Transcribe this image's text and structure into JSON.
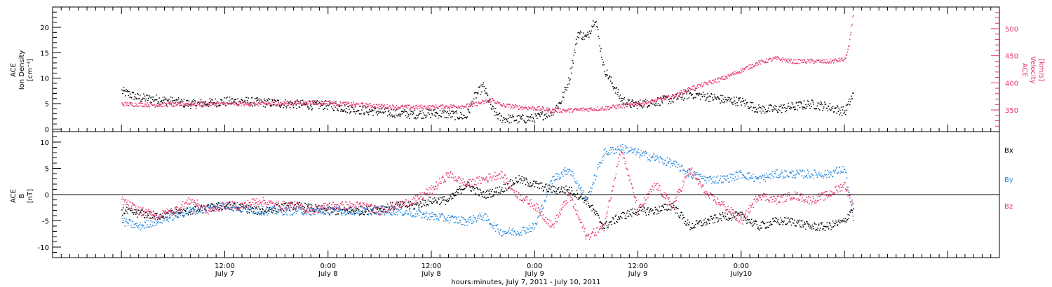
{
  "chart_data": [
    {
      "type": "scatter",
      "panel": "top",
      "ylabel_left": [
        "ACE",
        "Ion Density",
        "[cm⁻³]"
      ],
      "ylabel_right": [
        "ACE",
        "Velocity",
        "[km/s]"
      ],
      "ylim_left": [
        -0.5,
        24
      ],
      "ylim_right": [
        310,
        540
      ],
      "yticks_left": [
        "0",
        "5",
        "10",
        "15",
        "20"
      ],
      "yticks_right": [
        "350",
        "400",
        "450",
        "500"
      ],
      "colors": {
        "density": "#000000",
        "velocity": "#e6306b"
      },
      "series": [
        {
          "key": "density",
          "axis": "left",
          "color": "#000000",
          "x": [
            0,
            2,
            4,
            6,
            8,
            10,
            12,
            14,
            16,
            18,
            20,
            22,
            24,
            26,
            28,
            30,
            32,
            34,
            36,
            38,
            40,
            41,
            42,
            43,
            44,
            46,
            48,
            50,
            51,
            52,
            53,
            54,
            55,
            56,
            57,
            58,
            59,
            60,
            62,
            64,
            66,
            68,
            70,
            72,
            74,
            76,
            78,
            80,
            82,
            84,
            85
          ],
          "y": [
            7.5,
            6.2,
            6.0,
            5.5,
            5.0,
            5.2,
            5.5,
            5.6,
            5.3,
            5.2,
            5.0,
            4.8,
            4.8,
            4.2,
            3.8,
            3.5,
            3.2,
            3.0,
            3.2,
            3.0,
            2.5,
            6.5,
            8.5,
            4.0,
            2.2,
            2.0,
            2.2,
            3.5,
            5.5,
            10,
            19,
            18,
            22,
            12,
            9,
            6,
            5,
            5.0,
            5.5,
            6.0,
            7.0,
            6.5,
            5.8,
            5.5,
            4.0,
            4.0,
            4.5,
            5.0,
            4.5,
            3.5,
            7.0
          ]
        },
        {
          "key": "velocity",
          "axis": "right",
          "color": "#e6306b",
          "x": [
            0,
            4,
            8,
            12,
            16,
            20,
            24,
            28,
            32,
            36,
            40,
            42,
            43,
            44,
            46,
            48,
            50,
            52,
            54,
            56,
            58,
            60,
            62,
            64,
            66,
            68,
            70,
            72,
            74,
            76,
            78,
            80,
            82,
            84,
            84.5,
            85
          ],
          "y": [
            362,
            360,
            362,
            362,
            362,
            364,
            364,
            360,
            356,
            356,
            358,
            365,
            370,
            360,
            356,
            354,
            350,
            350,
            352,
            354,
            358,
            362,
            368,
            376,
            390,
            400,
            410,
            424,
            438,
            446,
            440,
            441,
            440,
            444,
            470,
            530
          ]
        }
      ]
    },
    {
      "type": "scatter",
      "panel": "bottom",
      "ylabel_left": [
        "ACE",
        "B",
        "[nT]"
      ],
      "ylim": [
        -12,
        12
      ],
      "yticks_left": [
        "-10",
        "-5",
        "0",
        "5",
        "10"
      ],
      "legend": [
        "Bx",
        "By",
        "Bz"
      ],
      "colors": {
        "bx": "#000000",
        "by": "#1f86e0",
        "bz": "#e6306b"
      },
      "series": [
        {
          "key": "bx",
          "color": "#000000",
          "x": [
            0,
            4,
            8,
            12,
            16,
            20,
            24,
            28,
            32,
            34,
            36,
            38,
            40,
            42,
            44,
            46,
            48,
            50,
            52,
            54,
            56,
            58,
            60,
            62,
            64,
            66,
            68,
            70,
            72,
            74,
            76,
            78,
            80,
            82,
            84,
            85
          ],
          "y": [
            -3,
            -4,
            -3,
            -2,
            -3,
            -2,
            -3,
            -3,
            -2,
            -2,
            -1,
            -1,
            2,
            0,
            1,
            3,
            2,
            1,
            1,
            -1,
            -6,
            -4,
            -3,
            -3,
            -2,
            -6,
            -5,
            -4,
            -4,
            -6,
            -5,
            -5,
            -6,
            -6,
            -5,
            -2
          ]
        },
        {
          "key": "by",
          "color": "#1f86e0",
          "x": [
            0,
            2,
            4,
            8,
            12,
            16,
            20,
            24,
            28,
            32,
            36,
            40,
            42,
            44,
            46,
            48,
            50,
            52,
            54,
            56,
            58,
            60,
            62,
            64,
            66,
            68,
            70,
            72,
            74,
            76,
            78,
            80,
            82,
            84,
            85
          ],
          "y": [
            -5,
            -6,
            -5,
            -3,
            -2,
            -3,
            -3,
            -3,
            -3,
            -3,
            -4,
            -5,
            -4,
            -7,
            -7,
            -6,
            3,
            5,
            -1,
            8,
            9,
            8,
            7,
            6,
            4,
            3,
            3,
            4,
            3,
            4,
            4,
            4,
            4,
            5,
            -5
          ]
        },
        {
          "key": "bz",
          "color": "#e6306b",
          "x": [
            0,
            2,
            4,
            6,
            8,
            10,
            12,
            14,
            16,
            18,
            20,
            22,
            24,
            26,
            28,
            30,
            32,
            34,
            36,
            38,
            40,
            42,
            44,
            46,
            48,
            50,
            52,
            54,
            56,
            58,
            60,
            62,
            64,
            66,
            68,
            70,
            72,
            74,
            76,
            78,
            80,
            82,
            84,
            85
          ],
          "y": [
            -1,
            -3,
            -4,
            -3,
            -1,
            -3,
            -2,
            -2,
            -1,
            -2,
            -2,
            -3,
            -2,
            -2,
            -2,
            -3,
            -2,
            -1,
            1,
            4,
            2,
            3,
            4,
            0,
            -2,
            -6,
            0,
            -8,
            -6,
            9,
            -3,
            2,
            -2,
            5,
            0,
            -2,
            -5,
            0,
            -1,
            0,
            -1,
            0,
            2,
            -2
          ]
        }
      ]
    }
  ],
  "xaxis": {
    "range_hours": [
      -8,
      102
    ],
    "ticks": [
      {
        "label_time": "12:00",
        "label_day": "July 7",
        "hours": 12
      },
      {
        "label_time": "0:00",
        "label_day": "July 8",
        "hours": 24
      },
      {
        "label_time": "12:00",
        "label_day": "July 8",
        "hours": 36
      },
      {
        "label_time": "0:00",
        "label_day": "July 9",
        "hours": 48
      },
      {
        "label_time": "12:00",
        "label_day": "July 9",
        "hours": 60
      },
      {
        "label_time": "0:00",
        "label_day": "July10",
        "hours": 72
      }
    ],
    "label": "hours:minutes, July  7, 2011 - July 10, 2011"
  }
}
